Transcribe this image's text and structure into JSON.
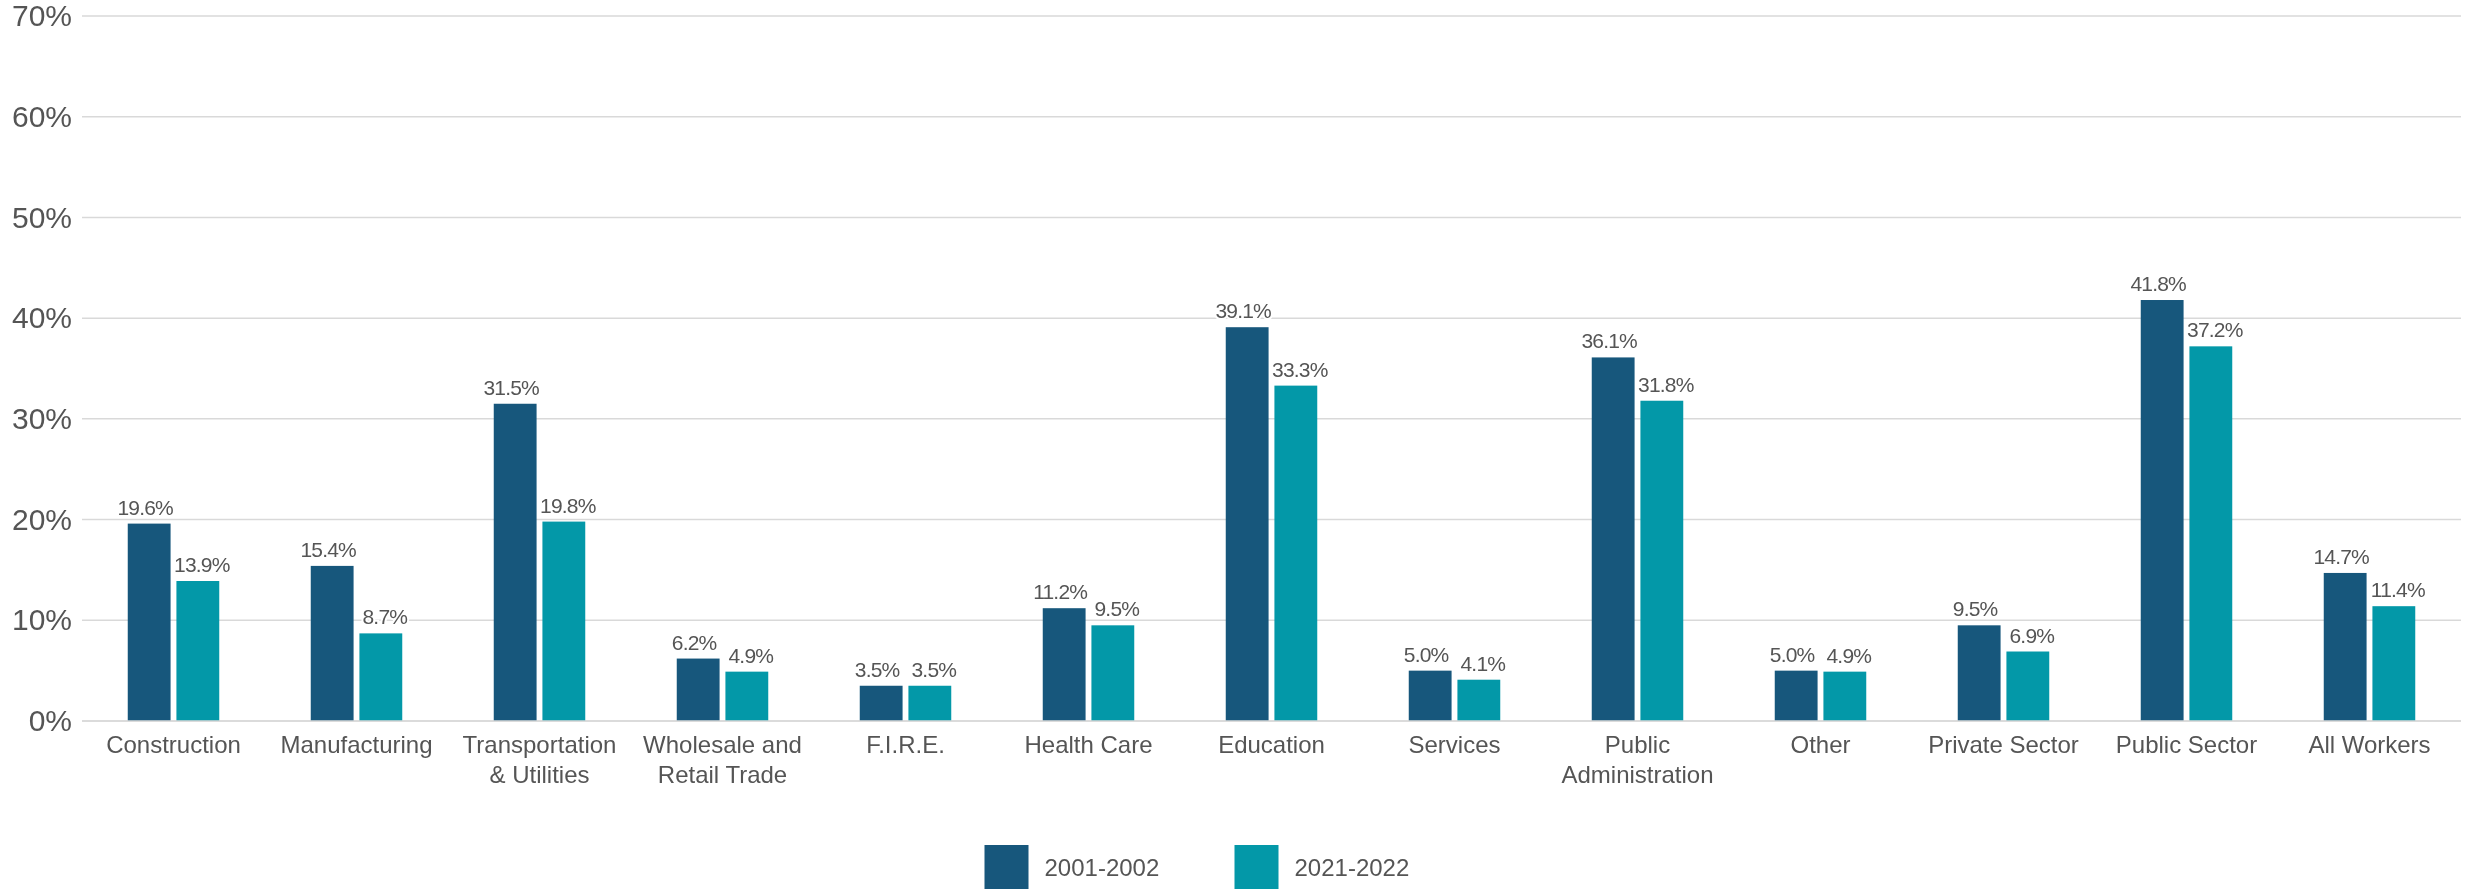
{
  "chart_data": {
    "type": "bar",
    "categories": [
      "Construction",
      "Manufacturing",
      "Transportation & Utilities",
      "Wholesale and Retail Trade",
      "F.I.R.E.",
      "Health Care",
      "Education",
      "Services",
      "Public Administration",
      "Other",
      "Private Sector",
      "Public Sector",
      "All Workers"
    ],
    "series": [
      {
        "name": "2001-2002",
        "color": "#17577c",
        "values": [
          19.6,
          15.4,
          31.5,
          6.2,
          3.5,
          11.2,
          39.1,
          5.0,
          36.1,
          5.0,
          9.5,
          41.8,
          14.7
        ],
        "value_labels": [
          "19.6%",
          "15.4%",
          "31.5%",
          "6.2%",
          "3.5%",
          "11.2%",
          "39.1%",
          "5.0%",
          "36.1%",
          "5.0%",
          "9.5%",
          "41.8%",
          "14.7%"
        ]
      },
      {
        "name": "2021-2022",
        "color": "#0398a8",
        "values": [
          13.9,
          8.7,
          19.8,
          4.9,
          3.5,
          9.5,
          33.3,
          4.1,
          31.8,
          4.9,
          6.9,
          37.2,
          11.4
        ],
        "value_labels": [
          "13.9%",
          "8.7%",
          "19.8%",
          "4.9%",
          "3.5%",
          "9.5%",
          "33.3%",
          "4.1%",
          "31.8%",
          "4.9%",
          "6.9%",
          "37.2%",
          "11.4%"
        ]
      }
    ],
    "ylim": [
      0,
      70
    ],
    "yticks": [
      {
        "value": 0,
        "label": "0%"
      },
      {
        "value": 10,
        "label": "10%"
      },
      {
        "value": 20,
        "label": "20%"
      },
      {
        "value": 30,
        "label": "30%"
      },
      {
        "value": 40,
        "label": "40%"
      },
      {
        "value": 50,
        "label": "50%"
      },
      {
        "value": 60,
        "label": "60%"
      },
      {
        "value": 70,
        "label": "70%"
      }
    ],
    "grid": "y",
    "legend": "bottom"
  }
}
